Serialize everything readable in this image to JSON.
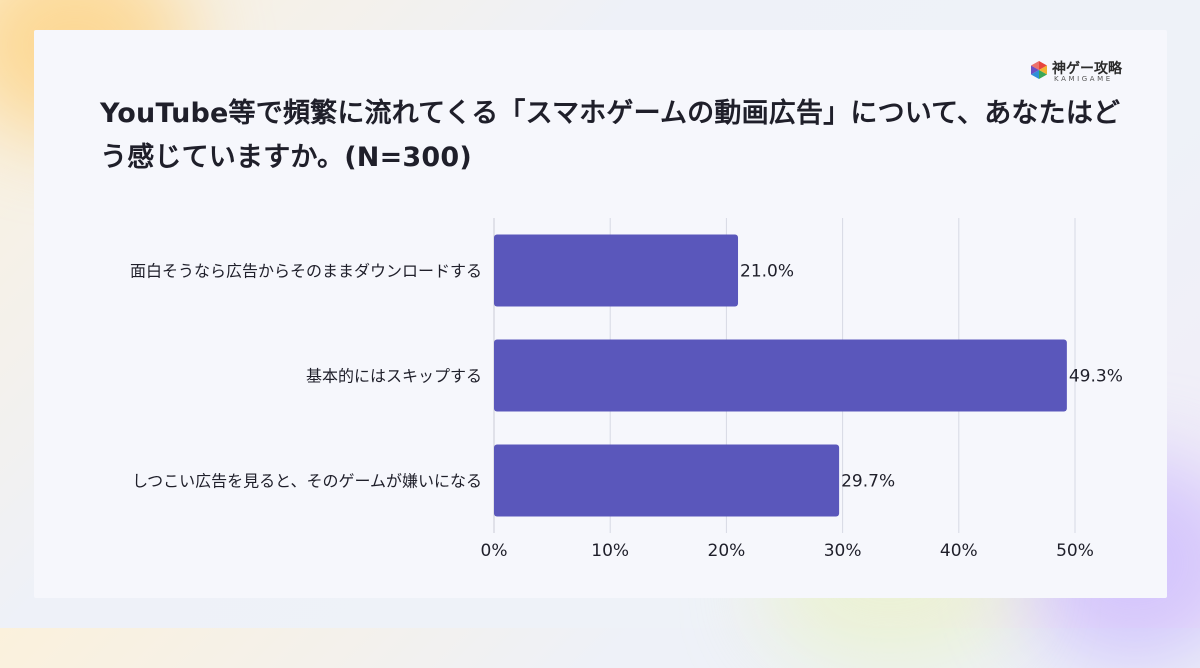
{
  "logo": {
    "name": "神ゲー攻略",
    "sub": "KAMIGAME"
  },
  "title": "YouTube等で頻繁に流れてくる「スマホゲームの動画広告」について、あなたはどう感じていますか。(N=300)",
  "colors": {
    "bar": "#5a57bb",
    "grid": "#d7d9e4",
    "axis": "#c9cbd6",
    "text": "#1f1f2a"
  },
  "chart_data": {
    "type": "bar",
    "orientation": "horizontal",
    "title": "YouTube等で頻繁に流れてくる「スマホゲームの動画広告」について、あなたはどう感じていますか。(N=300)",
    "categories": [
      "面白そうなら広告からそのままダウンロードする",
      "基本的にはスキップする",
      "しつこい広告を見ると、そのゲームが嫌いになる"
    ],
    "values": [
      21.0,
      49.3,
      29.7
    ],
    "value_labels": [
      "21.0%",
      "49.3%",
      "29.7%"
    ],
    "xlim": [
      0,
      50
    ],
    "xticks": [
      0,
      10,
      20,
      30,
      40,
      50
    ],
    "xtick_labels": [
      "0%",
      "10%",
      "20%",
      "30%",
      "40%",
      "50%"
    ],
    "grid": true,
    "legend": "none"
  }
}
